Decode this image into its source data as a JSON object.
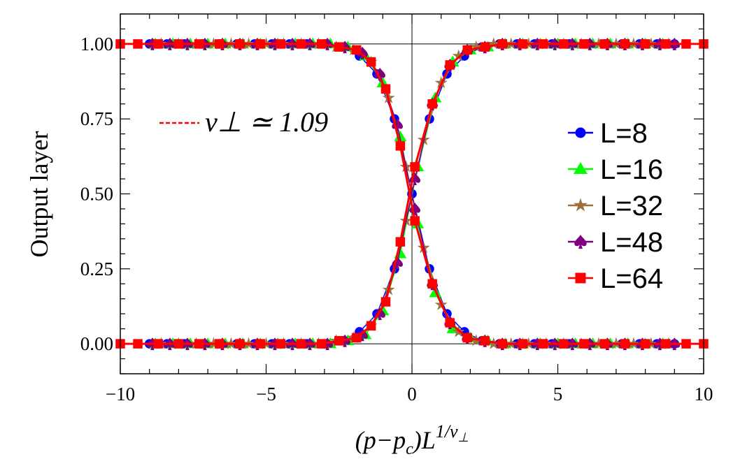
{
  "chart_data": {
    "type": "scatter",
    "title": "",
    "xlabel": "(p−p_c)L^{1/ν⊥}",
    "xlabel_parts": {
      "main": "(p−p",
      "sub_c": "c",
      "after": ")L",
      "sup": "1/ν",
      "sup_sub": "⊥"
    },
    "ylabel": "Output layer",
    "xlim": [
      -10,
      10
    ],
    "ylim": [
      -0.1,
      1.1
    ],
    "x_ticks": [
      "−10",
      "−5",
      "0",
      "5",
      "10"
    ],
    "x_tick_values": [
      -10,
      -5,
      0,
      5,
      10
    ],
    "y_ticks": [
      "0.00",
      "0.25",
      "0.50",
      "0.75",
      "1.00"
    ],
    "y_tick_values": [
      0,
      0.25,
      0.5,
      0.75,
      1.0
    ],
    "grid": false,
    "legend_position": "right",
    "annotation": {
      "text": "ν⊥ ≃ 1.09",
      "color": "#ff0000",
      "style": "dashed"
    },
    "series": [
      {
        "name": "L=8",
        "color": "#0000ff",
        "marker": "circle",
        "x": [
          -9,
          -8.4,
          -7.8,
          -7.2,
          -6.6,
          -6,
          -5.4,
          -4.8,
          -4.2,
          -3.6,
          -3,
          -2.4,
          -1.8,
          -1.2,
          -0.6,
          0,
          0.6,
          1.2,
          1.8,
          2.4,
          3,
          3.6,
          4.2,
          4.8,
          5.4,
          6,
          6.6,
          7.2,
          7.8,
          8.4,
          9
        ],
        "rising": [
          0,
          0,
          0,
          0,
          0,
          0,
          0,
          0,
          0,
          0,
          0,
          0.01,
          0.04,
          0.1,
          0.25,
          0.5,
          0.75,
          0.9,
          0.96,
          0.99,
          1,
          1,
          1,
          1,
          1,
          1,
          1,
          1,
          1,
          1,
          1
        ],
        "falling": [
          1,
          1,
          1,
          1,
          1,
          1,
          1,
          1,
          1,
          1,
          1,
          0.99,
          0.96,
          0.9,
          0.75,
          0.5,
          0.25,
          0.1,
          0.04,
          0.01,
          0,
          0,
          0,
          0,
          0,
          0,
          0,
          0,
          0,
          0,
          0
        ]
      },
      {
        "name": "L=16",
        "color": "#00ff00",
        "marker": "triangle",
        "x": [
          -8.8,
          -8.2,
          -7.6,
          -7,
          -6.4,
          -5.8,
          -5.2,
          -4.6,
          -4,
          -3.4,
          -2.8,
          -2.2,
          -1.6,
          -1,
          -0.4,
          0.2,
          0.8,
          1.4,
          2,
          2.6,
          3.2,
          3.8,
          4.4,
          5,
          5.6,
          6.2,
          6.8,
          7.4,
          8,
          8.6
        ],
        "rising": [
          0,
          0,
          0,
          0,
          0,
          0,
          0,
          0,
          0,
          0,
          0,
          0.01,
          0.03,
          0.11,
          0.3,
          0.59,
          0.82,
          0.94,
          0.98,
          0.99,
          1,
          1,
          1,
          1,
          1,
          1,
          1,
          1,
          1,
          1
        ],
        "falling": [
          1,
          1,
          1,
          1,
          1,
          1,
          1,
          1,
          1,
          1,
          1,
          0.99,
          0.96,
          0.87,
          0.69,
          0.4,
          0.17,
          0.05,
          0.02,
          0.01,
          0,
          0,
          0,
          0,
          0,
          0,
          0,
          0,
          0,
          0
        ]
      },
      {
        "name": "L=32",
        "color": "#a0703c",
        "marker": "star",
        "x": [
          -8.6,
          -8,
          -7.4,
          -6.8,
          -6.2,
          -5.6,
          -5,
          -4.4,
          -3.8,
          -3.2,
          -2.6,
          -2,
          -1.4,
          -0.8,
          -0.2,
          0.4,
          1,
          1.6,
          2.2,
          2.8,
          3.4,
          4,
          4.6,
          5.2,
          5.8,
          6.4,
          7,
          7.6,
          8.2,
          8.8
        ],
        "rising": [
          0,
          0,
          0,
          0,
          0,
          0,
          0,
          0,
          0,
          0,
          0.01,
          0.02,
          0.06,
          0.18,
          0.41,
          0.68,
          0.87,
          0.96,
          0.99,
          1,
          1,
          1,
          1,
          1,
          1,
          1,
          1,
          1,
          1,
          1
        ],
        "falling": [
          1,
          1,
          1,
          1,
          1,
          1,
          1,
          1,
          1,
          1,
          0.99,
          0.98,
          0.94,
          0.82,
          0.59,
          0.32,
          0.13,
          0.04,
          0.01,
          0,
          0,
          0,
          0,
          0,
          0,
          0,
          0,
          0,
          0,
          0
        ]
      },
      {
        "name": "L=48",
        "color": "#800080",
        "marker": "spade",
        "x": [
          -8.9,
          -8.3,
          -7.7,
          -7.1,
          -6.5,
          -5.9,
          -5.3,
          -4.7,
          -4.1,
          -3.5,
          -2.9,
          -2.3,
          -1.7,
          -1.1,
          -0.5,
          0.1,
          0.7,
          1.3,
          1.9,
          2.5,
          3.1,
          3.7,
          4.3,
          4.9,
          5.5,
          6.1,
          6.7,
          7.3,
          7.9,
          8.5,
          9
        ],
        "rising": [
          0,
          0,
          0,
          0,
          0,
          0,
          0,
          0,
          0,
          0,
          0,
          0.01,
          0.03,
          0.1,
          0.27,
          0.55,
          0.8,
          0.93,
          0.98,
          0.99,
          1,
          1,
          1,
          1,
          1,
          1,
          1,
          1,
          1,
          1,
          1
        ],
        "falling": [
          1,
          1,
          1,
          1,
          1,
          1,
          1,
          1,
          1,
          1,
          1,
          0.99,
          0.97,
          0.9,
          0.73,
          0.45,
          0.2,
          0.07,
          0.02,
          0.01,
          0,
          0,
          0,
          0,
          0,
          0,
          0,
          0,
          0,
          0,
          0
        ]
      },
      {
        "name": "L=64",
        "color": "#ff0000",
        "marker": "square",
        "x": [
          -10,
          -9.4,
          -8.7,
          -8,
          -7.3,
          -6.6,
          -5.9,
          -5.2,
          -4.5,
          -3.8,
          -3.1,
          -2.5,
          -1.9,
          -1.4,
          -0.9,
          -0.4,
          0.1,
          0.7,
          1.3,
          1.9,
          2.5,
          3.1,
          3.8,
          4.5,
          5.2,
          5.9,
          6.6,
          7.3,
          8,
          8.7,
          9.4,
          10
        ],
        "rising": [
          0,
          0,
          0,
          0,
          0,
          0,
          0,
          0,
          0,
          0,
          0,
          0.01,
          0.02,
          0.06,
          0.14,
          0.34,
          0.59,
          0.8,
          0.93,
          0.98,
          0.99,
          1,
          1,
          1,
          1,
          1,
          1,
          1,
          1,
          1,
          1,
          1
        ],
        "falling": [
          1,
          1,
          1,
          1,
          1,
          1,
          1,
          1,
          1,
          1,
          1,
          0.99,
          0.98,
          0.94,
          0.85,
          0.66,
          0.41,
          0.2,
          0.07,
          0.02,
          0.01,
          0,
          0,
          0,
          0,
          0,
          0,
          0,
          0,
          0,
          0,
          0
        ]
      }
    ]
  }
}
